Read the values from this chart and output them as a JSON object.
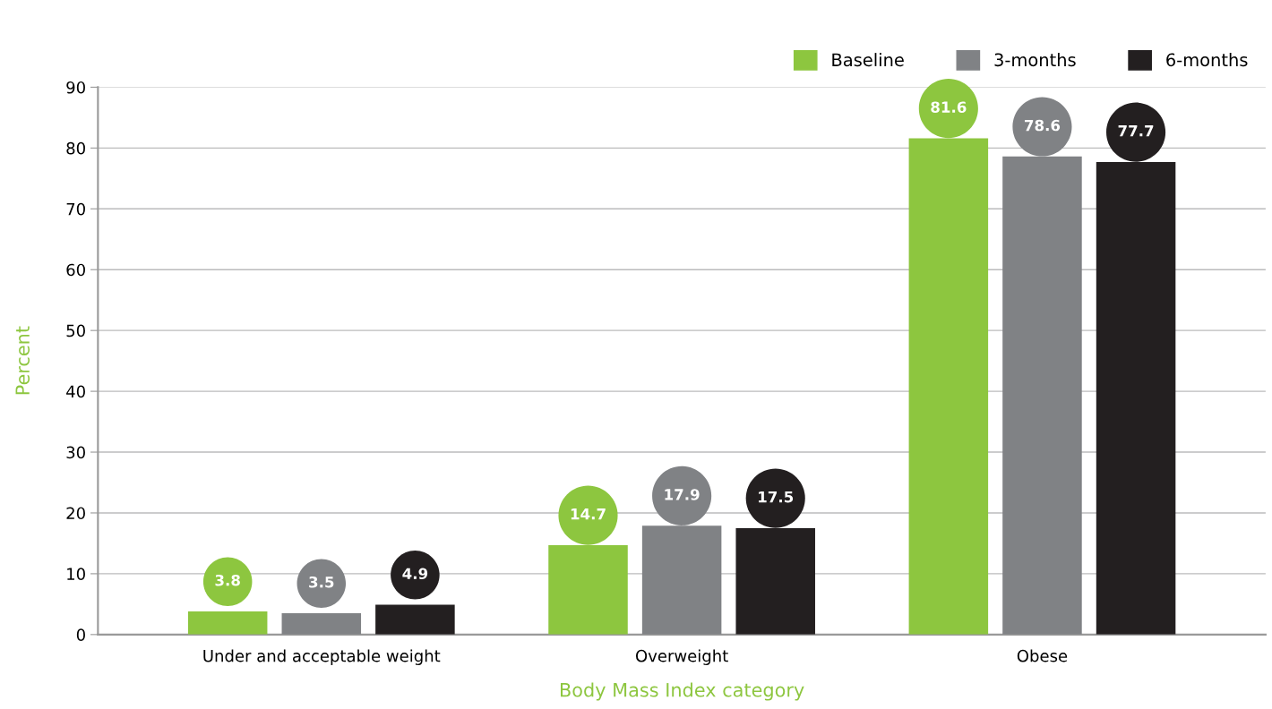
{
  "chart_data": {
    "type": "bar",
    "xlabel": "Body Mass Index category",
    "ylabel": "Percent",
    "categories": [
      "Under and acceptable weight",
      "Overweight",
      "Obese"
    ],
    "series": [
      {
        "name": "Baseline",
        "color": "#8dc63f",
        "values": [
          3.8,
          14.7,
          81.6
        ]
      },
      {
        "name": "3-months",
        "color": "#808285",
        "values": [
          3.5,
          17.9,
          78.6
        ]
      },
      {
        "name": "6-months",
        "color": "#231f20",
        "values": [
          4.9,
          17.5,
          77.7
        ]
      }
    ],
    "ylim": [
      0,
      90
    ],
    "yticks": [
      0,
      10,
      20,
      30,
      40,
      50,
      60,
      70,
      80,
      90
    ],
    "grid": "y",
    "legend": "top right",
    "data_labels": true
  }
}
